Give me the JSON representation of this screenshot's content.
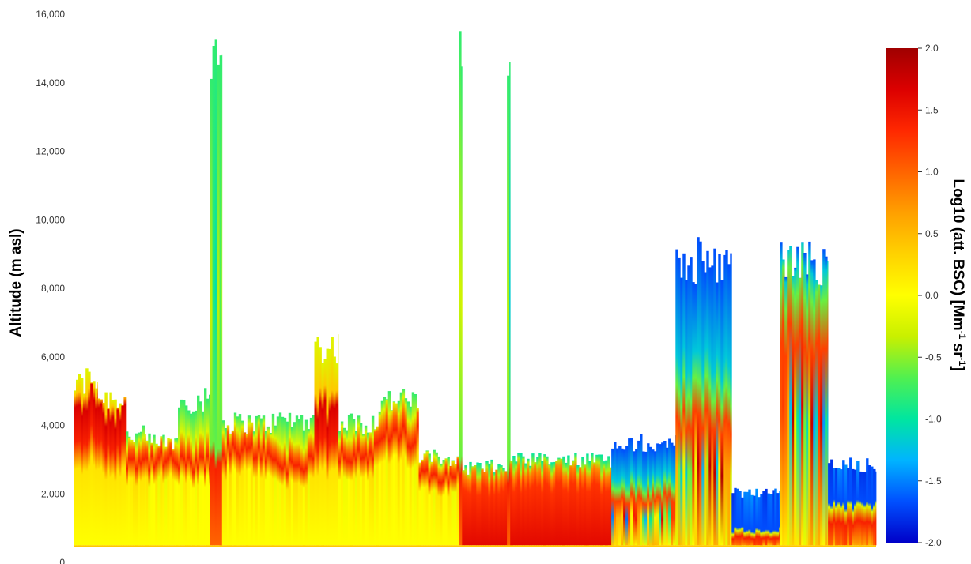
{
  "chart_data": {
    "type": "heatmap",
    "ylabel": "Altitude (m asl)",
    "xlabel": "",
    "title": "",
    "ylim": [
      0,
      16000
    ],
    "yticks": [
      {
        "value": 0,
        "label": "0"
      },
      {
        "value": 2000,
        "label": "2,000"
      },
      {
        "value": 4000,
        "label": "4,000"
      },
      {
        "value": 6000,
        "label": "6,000"
      },
      {
        "value": 8000,
        "label": "8,000"
      },
      {
        "value": 10000,
        "label": "10,000"
      },
      {
        "value": 12000,
        "label": "12,000"
      },
      {
        "value": 14000,
        "label": "14,000"
      },
      {
        "value": 16000,
        "label": "16,000"
      }
    ],
    "colorbar": {
      "label_prefix": "Log10 (att. BSC) [Mm",
      "sup1": "-1",
      "label_mid": " sr",
      "sup2": "-1",
      "label_suffix": "]",
      "range": [
        -2.0,
        2.0
      ],
      "ticks": [
        {
          "value": 2.0,
          "label": "2.0"
        },
        {
          "value": 1.5,
          "label": "1.5"
        },
        {
          "value": 1.0,
          "label": "1.0"
        },
        {
          "value": 0.5,
          "label": "0.5"
        },
        {
          "value": 0.0,
          "label": "0.0"
        },
        {
          "value": -0.5,
          "label": "-0.5"
        },
        {
          "value": -1.0,
          "label": "-1.0"
        },
        {
          "value": -1.5,
          "label": "-1.5"
        },
        {
          "value": -2.0,
          "label": "-2.0"
        }
      ],
      "colors": [
        "#0000c8",
        "#0050ff",
        "#00b4ff",
        "#00e6a0",
        "#50f050",
        "#c8f000",
        "#ffff00",
        "#ffd200",
        "#ffa000",
        "#ff6400",
        "#ff2800",
        "#dc0000",
        "#a00000"
      ]
    },
    "x_domain": [
      0,
      100
    ],
    "profiles": [
      {
        "x": [
          0,
          1.5
        ],
        "top": 5600,
        "red_top": 4400,
        "base": 500,
        "level": "strong"
      },
      {
        "x": [
          1.5,
          3
        ],
        "top": 5800,
        "red_top": 4800,
        "base": 500,
        "level": "strong"
      },
      {
        "x": [
          3,
          6.5
        ],
        "top": 5200,
        "red_top": 4300,
        "base": 500,
        "level": "strong"
      },
      {
        "x": [
          6.5,
          9
        ],
        "top": 4000,
        "red_top": 3300,
        "base": 500,
        "level": "mid"
      },
      {
        "x": [
          9,
          13
        ],
        "top": 3800,
        "red_top": 3200,
        "base": 500,
        "level": "mid"
      },
      {
        "x": [
          13,
          17
        ],
        "top": 5100,
        "red_top": 3100,
        "base": 500,
        "level": "mid"
      },
      {
        "x": [
          17,
          18.5
        ],
        "top": 15800,
        "red_top": 3000,
        "base": 500,
        "level": "column"
      },
      {
        "x": [
          18.5,
          25
        ],
        "top": 4400,
        "red_top": 3500,
        "base": 500,
        "level": "mid"
      },
      {
        "x": [
          25,
          30
        ],
        "top": 4500,
        "red_top": 3100,
        "base": 500,
        "level": "mid"
      },
      {
        "x": [
          30,
          33
        ],
        "top": 6800,
        "red_top": 4300,
        "base": 500,
        "level": "strong"
      },
      {
        "x": [
          33,
          38
        ],
        "top": 4400,
        "red_top": 3500,
        "base": 500,
        "level": "mid"
      },
      {
        "x": [
          38,
          43
        ],
        "top": 5100,
        "red_top": 4000,
        "base": 500,
        "level": "mid"
      },
      {
        "x": [
          43,
          48
        ],
        "top": 3300,
        "red_top": 2800,
        "base": 500,
        "level": "mid"
      },
      {
        "x": [
          48,
          48.4
        ],
        "top": 15800,
        "red_top": 2800,
        "base": 500,
        "level": "column"
      },
      {
        "x": [
          48.4,
          54
        ],
        "top": 3000,
        "red_top": 2500,
        "base": 500,
        "level": "low"
      },
      {
        "x": [
          54,
          54.4
        ],
        "top": 15800,
        "red_top": 2500,
        "base": 500,
        "level": "column"
      },
      {
        "x": [
          54.4,
          67
        ],
        "top": 3200,
        "red_top": 2600,
        "base": 500,
        "level": "low"
      },
      {
        "x": [
          67,
          75
        ],
        "top": 3800,
        "red_top": 2200,
        "base": 500,
        "level": "cloud"
      },
      {
        "x": [
          75,
          82
        ],
        "top": 9500,
        "red_top": 5000,
        "base": 500,
        "level": "cloud"
      },
      {
        "x": [
          82,
          88
        ],
        "top": 2200,
        "red_top": 900,
        "base": 500,
        "level": "blue"
      },
      {
        "x": [
          88,
          94
        ],
        "top": 9500,
        "red_top": 8000,
        "base": 500,
        "level": "cloud"
      },
      {
        "x": [
          94,
          100
        ],
        "top": 3100,
        "red_top": 1600,
        "base": 500,
        "level": "blue"
      }
    ]
  }
}
